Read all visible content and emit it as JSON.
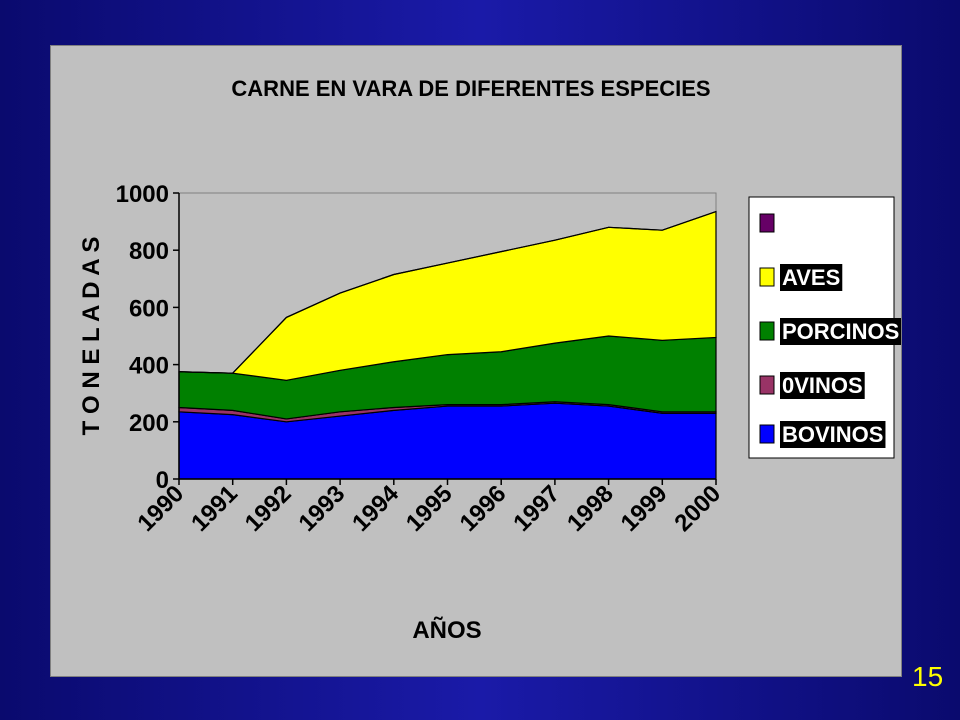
{
  "page": {
    "number": "15"
  },
  "chart_data": {
    "type": "area",
    "stacked": true,
    "title": "CARNE EN VARA DE DIFERENTES ESPECIES",
    "xlabel": "AÑOS",
    "ylabel": "T O N E L A D A S",
    "ylim": [
      0,
      1000
    ],
    "yticks": [
      "0",
      "200",
      "400",
      "600",
      "800",
      "1000"
    ],
    "categories": [
      "1990",
      "1991",
      "1992",
      "1993",
      "1994",
      "1995",
      "1996",
      "1997",
      "1998",
      "1999",
      "2000"
    ],
    "series": [
      {
        "name": "BOVINOS",
        "color": "#0000ff",
        "values": [
          235,
          225,
          200,
          220,
          240,
          255,
          255,
          265,
          255,
          230,
          230
        ]
      },
      {
        "name": "0VINOS",
        "color": "#993366",
        "values": [
          15,
          15,
          10,
          15,
          10,
          5,
          5,
          5,
          5,
          5,
          5
        ]
      },
      {
        "name": "PORCINOS",
        "color": "#008000",
        "values": [
          125,
          130,
          135,
          145,
          160,
          175,
          185,
          205,
          240,
          250,
          260
        ]
      },
      {
        "name": "AVES",
        "color": "#ffff00",
        "values": [
          0,
          0,
          220,
          270,
          305,
          320,
          350,
          360,
          380,
          385,
          440
        ]
      },
      {
        "name": "",
        "color": "#660066",
        "values": [
          0,
          0,
          0,
          0,
          0,
          0,
          0,
          0,
          0,
          0,
          0
        ]
      }
    ],
    "legend_order": [
      "",
      "AVES",
      "PORCINOS",
      "0VINOS",
      "BOVINOS"
    ],
    "legend_position": "right",
    "background": "#c0c0c0",
    "plot_background": "#c0c0c0"
  }
}
